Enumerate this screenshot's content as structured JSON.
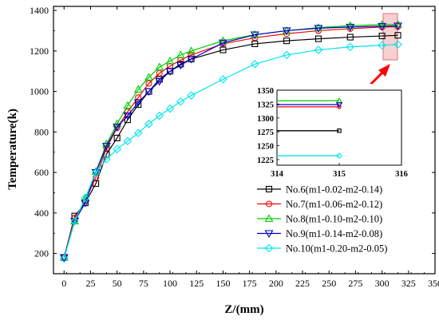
{
  "chart_data": {
    "type": "line",
    "xlabel": "Z/(mm)",
    "ylabel": "Temperature(k)",
    "xlim": [
      -10,
      350
    ],
    "ylim": [
      100,
      1420
    ],
    "xticks": [
      0,
      25,
      50,
      75,
      100,
      125,
      150,
      175,
      200,
      225,
      250,
      275,
      300,
      325,
      350
    ],
    "yticks": [
      200,
      400,
      600,
      800,
      1000,
      1200,
      1400
    ],
    "legend_position": "bottom-right",
    "series": [
      {
        "name": "No.6(m1-0.02-m2-0.14)",
        "color": "#000000",
        "marker": "square",
        "x": [
          0,
          10,
          20,
          30,
          40,
          50,
          60,
          70,
          80,
          90,
          100,
          110,
          120,
          150,
          180,
          210,
          240,
          270,
          300,
          315
        ],
        "y": [
          180,
          385,
          450,
          545,
          690,
          770,
          860,
          935,
          1000,
          1060,
          1100,
          1135,
          1160,
          1205,
          1235,
          1250,
          1260,
          1268,
          1274,
          1277
        ]
      },
      {
        "name": "No.7(m1-0.06-m2-0.12)",
        "color": "#ff0000",
        "marker": "circle",
        "x": [
          0,
          10,
          20,
          30,
          40,
          50,
          60,
          70,
          80,
          90,
          100,
          110,
          120,
          150,
          180,
          210,
          240,
          270,
          300,
          315
        ],
        "y": [
          180,
          375,
          460,
          575,
          720,
          820,
          900,
          970,
          1040,
          1090,
          1125,
          1155,
          1180,
          1235,
          1265,
          1285,
          1300,
          1310,
          1318,
          1320
        ]
      },
      {
        "name": "No.8(m1-0.10-m2-0.10)",
        "color": "#00cc00",
        "marker": "triangle-up",
        "x": [
          0,
          10,
          20,
          30,
          40,
          50,
          60,
          70,
          80,
          90,
          100,
          110,
          120,
          150,
          180,
          210,
          240,
          270,
          300,
          315
        ],
        "y": [
          180,
          360,
          470,
          605,
          740,
          840,
          930,
          1010,
          1070,
          1120,
          1150,
          1180,
          1200,
          1250,
          1280,
          1300,
          1315,
          1325,
          1330,
          1331
        ]
      },
      {
        "name": "No.9(m1-0.14-m2-0.08)",
        "color": "#0000cc",
        "marker": "triangle-down",
        "x": [
          0,
          10,
          20,
          30,
          40,
          50,
          60,
          70,
          80,
          90,
          100,
          110,
          120,
          150,
          180,
          210,
          240,
          270,
          300,
          315
        ],
        "y": [
          180,
          360,
          450,
          600,
          730,
          825,
          880,
          945,
          1000,
          1050,
          1100,
          1130,
          1160,
          1240,
          1280,
          1300,
          1312,
          1318,
          1322,
          1324
        ]
      },
      {
        "name": "No.10(m1-0.20-m2-0.05)",
        "color": "#00e5ee",
        "marker": "diamond",
        "x": [
          0,
          10,
          20,
          30,
          40,
          50,
          60,
          70,
          80,
          90,
          100,
          110,
          120,
          150,
          180,
          210,
          240,
          270,
          300,
          315
        ],
        "y": [
          175,
          360,
          475,
          600,
          665,
          715,
          755,
          795,
          840,
          880,
          915,
          950,
          980,
          1060,
          1135,
          1180,
          1205,
          1220,
          1228,
          1232
        ]
      }
    ],
    "inset": {
      "xlim": [
        314,
        316
      ],
      "ylim": [
        1215,
        1350
      ],
      "xticks": [
        314,
        315,
        316
      ],
      "yticks": [
        1225,
        1250,
        1275,
        1300,
        1325,
        1350
      ],
      "segments": [
        {
          "series": "No.6(m1-0.02-m2-0.14)",
          "x": [
            314,
            315.0
          ],
          "y": [
            1277,
            1277
          ]
        },
        {
          "series": "No.7(m1-0.06-m2-0.12)",
          "x": [
            314,
            315.0
          ],
          "y": [
            1320,
            1320
          ]
        },
        {
          "series": "No.8(m1-0.10-m2-0.10)",
          "x": [
            314,
            315.0
          ],
          "y": [
            1331,
            1331
          ]
        },
        {
          "series": "No.9(m1-0.14-m2-0.08)",
          "x": [
            314,
            315.0
          ],
          "y": [
            1324,
            1324
          ]
        },
        {
          "series": "No.10(m1-0.20-m2-0.05)",
          "x": [
            314,
            315.0
          ],
          "y": [
            1232,
            1232
          ]
        }
      ]
    }
  }
}
